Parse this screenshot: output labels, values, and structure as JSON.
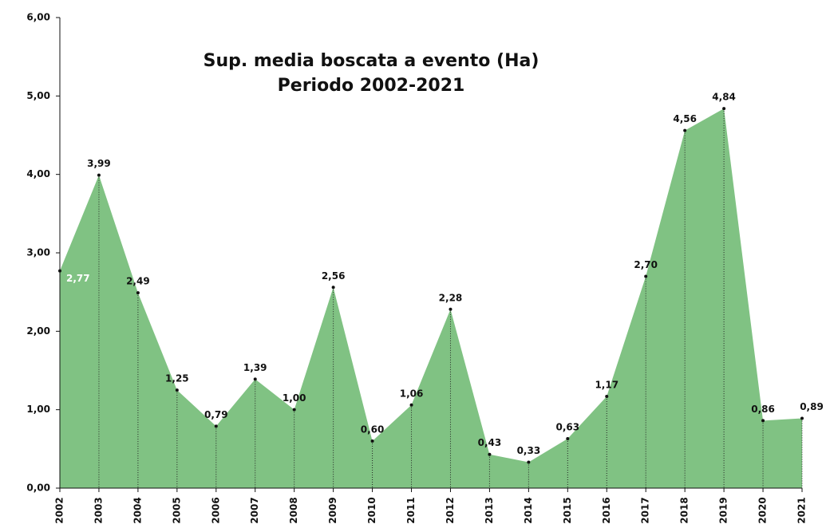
{
  "chart_data": {
    "type": "area",
    "title": "Sup. media boscata a evento (Ha)",
    "subtitle": "Periodo 2002-2021",
    "categories": [
      "2002",
      "2003",
      "2004",
      "2005",
      "2006",
      "2007",
      "2008",
      "2009",
      "2010",
      "2011",
      "2012",
      "2013",
      "2014",
      "2015",
      "2016",
      "2017",
      "2018",
      "2019",
      "2020",
      "2021"
    ],
    "values": [
      2.77,
      3.99,
      2.49,
      1.25,
      0.79,
      1.39,
      1.0,
      2.56,
      0.6,
      1.06,
      2.28,
      0.43,
      0.33,
      0.63,
      1.17,
      2.7,
      4.56,
      4.84,
      0.86,
      0.89
    ],
    "value_labels": [
      "2,77",
      "3,99",
      "2,49",
      "1,25",
      "0,79",
      "1,39",
      "1,00",
      "2,56",
      "0,60",
      "1,06",
      "2,28",
      "0,43",
      "0,33",
      "0,63",
      "1,17",
      "2,70",
      "4,56",
      "4,84",
      "0,86",
      "0,89"
    ],
    "color": "#80c283",
    "ylim": [
      0,
      6
    ],
    "yticks": [
      {
        "value": 0,
        "label": "0,00"
      },
      {
        "value": 1,
        "label": "1,00"
      },
      {
        "value": 2,
        "label": "2,00"
      },
      {
        "value": 3,
        "label": "3,00"
      },
      {
        "value": 4,
        "label": "4,00"
      },
      {
        "value": 5,
        "label": "5,00"
      },
      {
        "value": 6,
        "label": "6,00"
      }
    ],
    "grid": false
  }
}
